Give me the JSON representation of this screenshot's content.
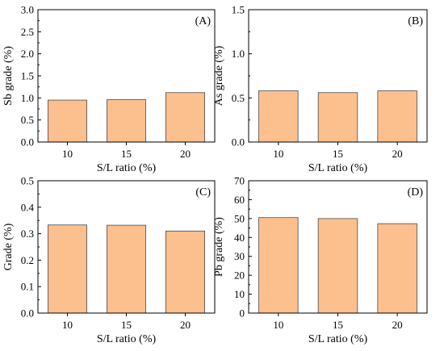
{
  "chart_data": [
    {
      "type": "bar",
      "panel_label": "(A)",
      "categories": [
        "10",
        "15",
        "20"
      ],
      "values": [
        0.95,
        0.96,
        1.12
      ],
      "xlabel": "S/L ratio (%)",
      "ylabel": "Sb grade (%)",
      "ylim": [
        0,
        3.0
      ],
      "yticks": [
        "0.0",
        "0.5",
        "1.0",
        "1.5",
        "2.0",
        "2.5",
        "3.0"
      ],
      "bar_color": "#fcc08e",
      "grid": false
    },
    {
      "type": "bar",
      "panel_label": "(B)",
      "categories": [
        "10",
        "15",
        "20"
      ],
      "values": [
        0.58,
        0.56,
        0.58
      ],
      "xlabel": "S/L ratio (%)",
      "ylabel": "As grade (%)",
      "ylim": [
        0,
        1.5
      ],
      "yticks": [
        "0.0",
        "0.5",
        "1.0",
        "1.5"
      ],
      "bar_color": "#fcc08e",
      "grid": false
    },
    {
      "type": "bar",
      "panel_label": "(C)",
      "categories": [
        "10",
        "15",
        "20"
      ],
      "values": [
        0.333,
        0.332,
        0.31
      ],
      "xlabel": "S/L ratio (%)",
      "ylabel": "Grade (%)",
      "ylim": [
        0,
        0.5
      ],
      "yticks": [
        "0.0",
        "0.1",
        "0.2",
        "0.3",
        "0.4",
        "0.5"
      ],
      "bar_color": "#fcc08e",
      "grid": false
    },
    {
      "type": "bar",
      "panel_label": "(D)",
      "categories": [
        "10",
        "15",
        "20"
      ],
      "values": [
        50.5,
        50.0,
        47.3
      ],
      "xlabel": "S/L ratio (%)",
      "ylabel": "Pb grade (%)",
      "ylim": [
        0,
        70
      ],
      "yticks": [
        "0",
        "10",
        "20",
        "30",
        "40",
        "50",
        "60",
        "70"
      ],
      "bar_color": "#fcc08e",
      "grid": false
    }
  ]
}
